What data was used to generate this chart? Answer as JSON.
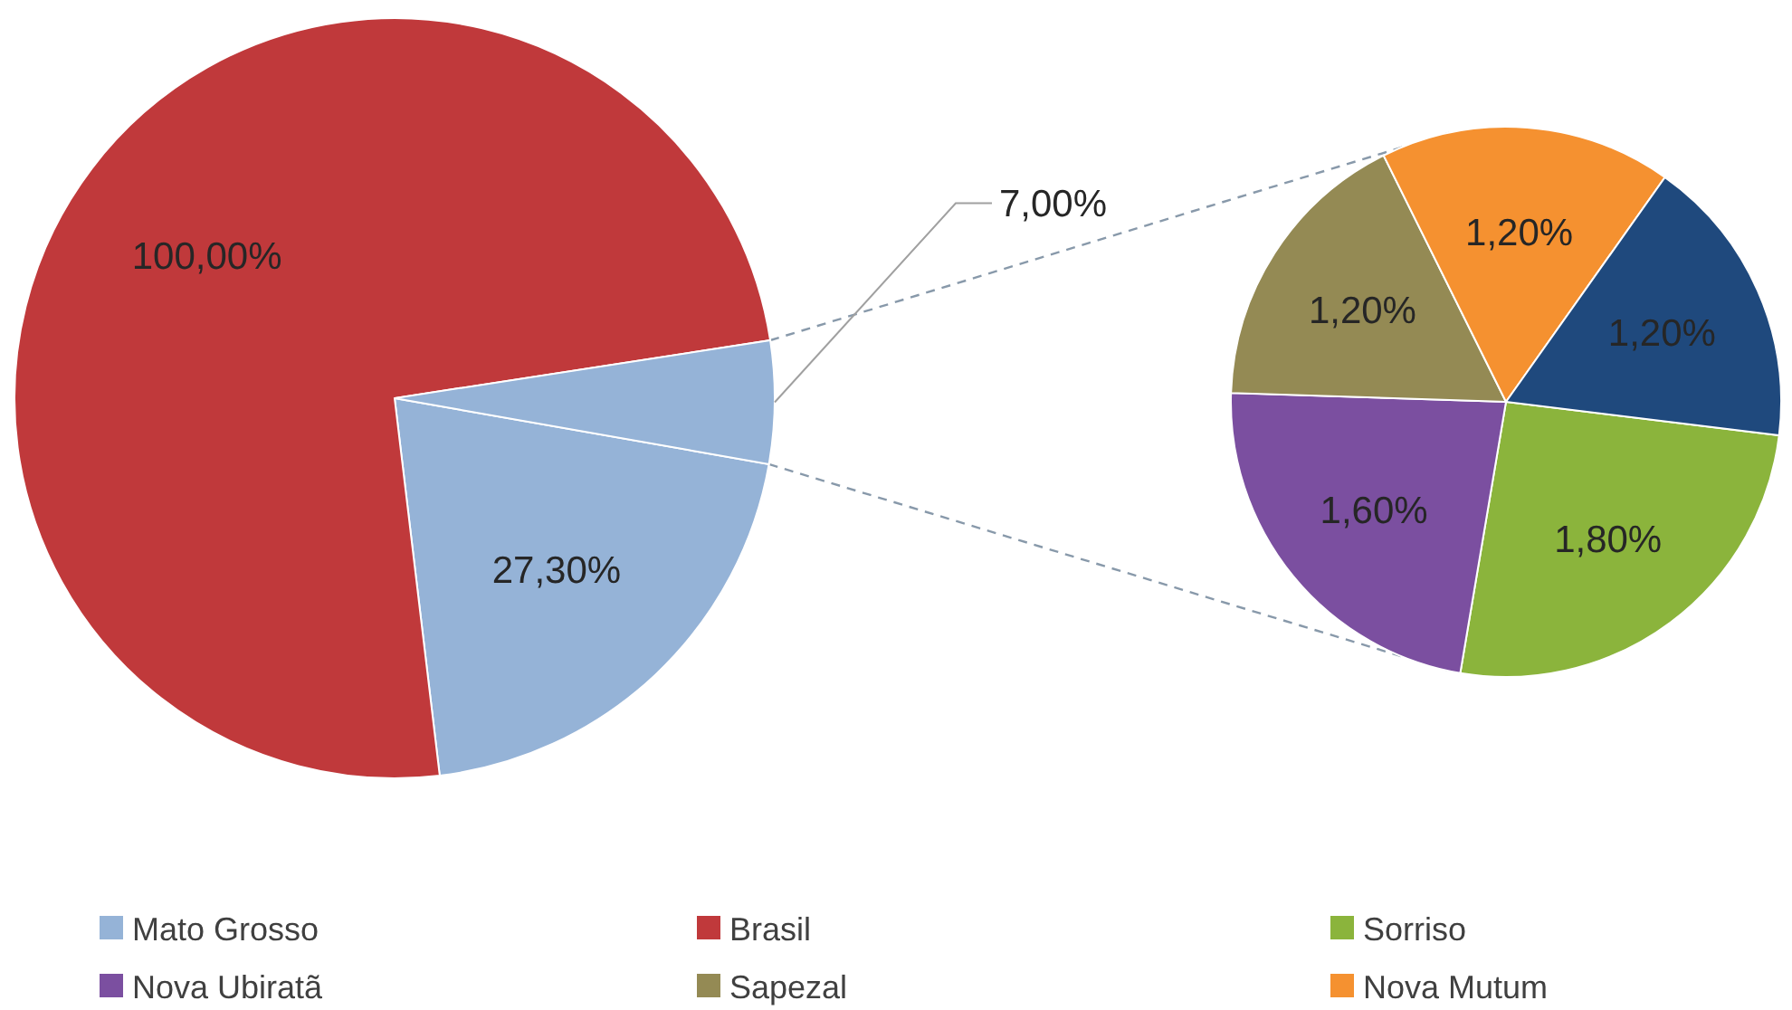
{
  "chart_data": [
    {
      "type": "pie",
      "categories": [
        "Mato Grosso",
        "Brasil",
        null
      ],
      "values": [
        27.3,
        100,
        7.0
      ],
      "colors": [
        "#95b3d7",
        "#c0393b",
        "#95b3d7"
      ],
      "data_labels": true,
      "value_labels": [
        "27,30%",
        "100,00%",
        "7,00%"
      ],
      "legend": "bottom"
    },
    {
      "type": "pie",
      "categories": [
        "Sorriso",
        "Nova Ubiratã",
        "Sapezal",
        "Nova Mutum",
        null
      ],
      "values": [
        1.8,
        1.6,
        1.2,
        1.2,
        1.2
      ],
      "colors": [
        "#8bb43c",
        "#7b4fa0",
        "#948a54",
        "#f59130",
        "#1f497d"
      ],
      "data_labels": true,
      "value_labels": [
        "1,80%",
        "1,60%",
        "1,20%",
        "1,20%",
        "1,20%"
      ],
      "legend": "bottom"
    }
  ]
}
